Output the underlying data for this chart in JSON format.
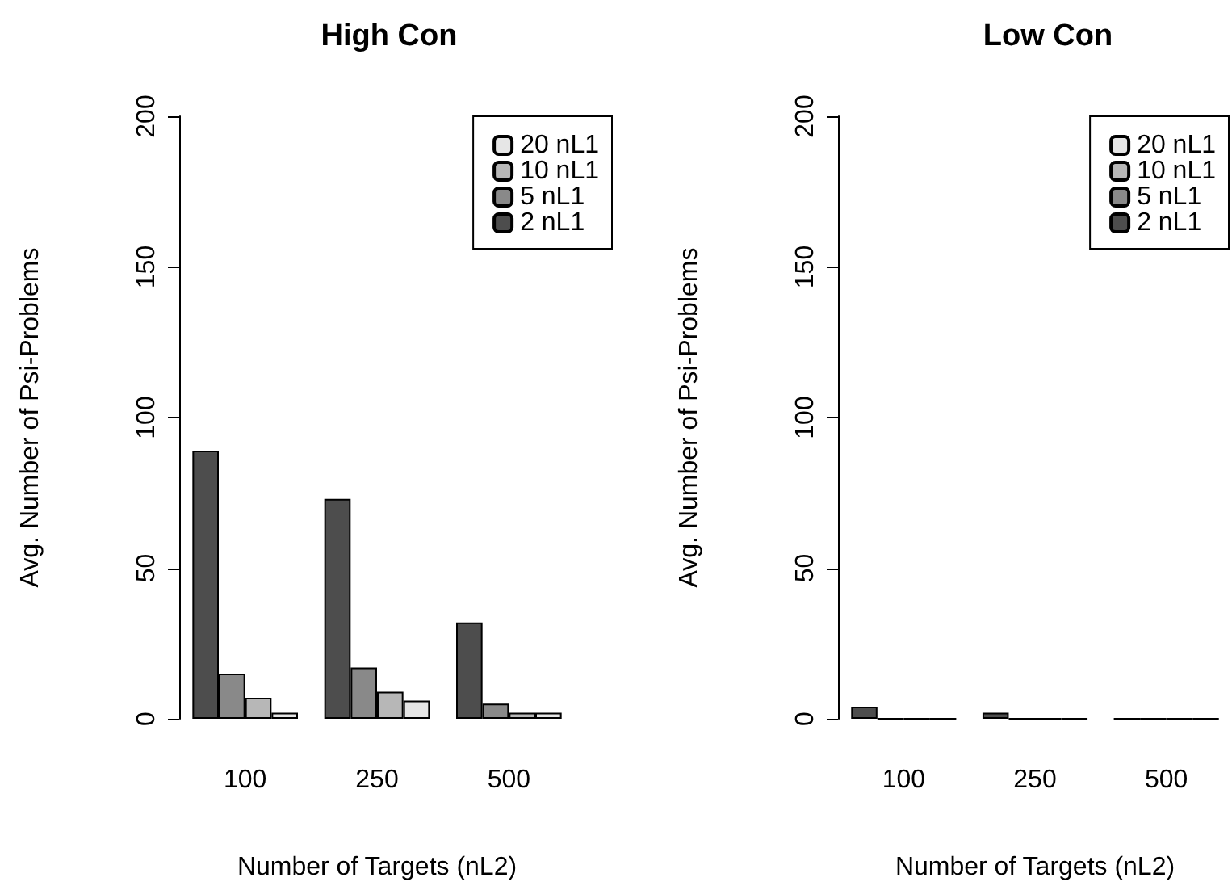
{
  "chart_data": [
    {
      "type": "bar",
      "title": "High Con",
      "xlabel": "Number of Targets (nL2)",
      "ylabel": "Avg. Number of Psi-Problems",
      "categories": [
        "100",
        "250",
        "500"
      ],
      "series": [
        {
          "name": "2 nL1",
          "color": "#4d4d4d",
          "values": [
            89,
            73,
            32
          ]
        },
        {
          "name": "5 nL1",
          "color": "#898989",
          "values": [
            15,
            17,
            5
          ]
        },
        {
          "name": "10 nL1",
          "color": "#b7b7b7",
          "values": [
            7,
            9,
            2
          ]
        },
        {
          "name": "20 nL1",
          "color": "#e6e6e6",
          "values": [
            2,
            6,
            2
          ]
        }
      ],
      "ylim": [
        0,
        200
      ],
      "yticks": [
        0,
        50,
        100,
        150,
        200
      ],
      "legend": "top right"
    },
    {
      "type": "bar",
      "title": "Low Con",
      "xlabel": "Number of Targets (nL2)",
      "ylabel": "Avg. Number of Psi-Problems",
      "categories": [
        "100",
        "250",
        "500"
      ],
      "series": [
        {
          "name": "2 nL1",
          "color": "#4d4d4d",
          "values": [
            4,
            2,
            0
          ]
        },
        {
          "name": "5 nL1",
          "color": "#898989",
          "values": [
            0,
            0,
            0
          ]
        },
        {
          "name": "10 nL1",
          "color": "#b7b7b7",
          "values": [
            0,
            0,
            0
          ]
        },
        {
          "name": "20 nL1",
          "color": "#e6e6e6",
          "values": [
            0,
            0,
            0
          ]
        }
      ],
      "ylim": [
        0,
        200
      ],
      "yticks": [
        0,
        50,
        100,
        150,
        200
      ],
      "legend": "top right"
    }
  ]
}
